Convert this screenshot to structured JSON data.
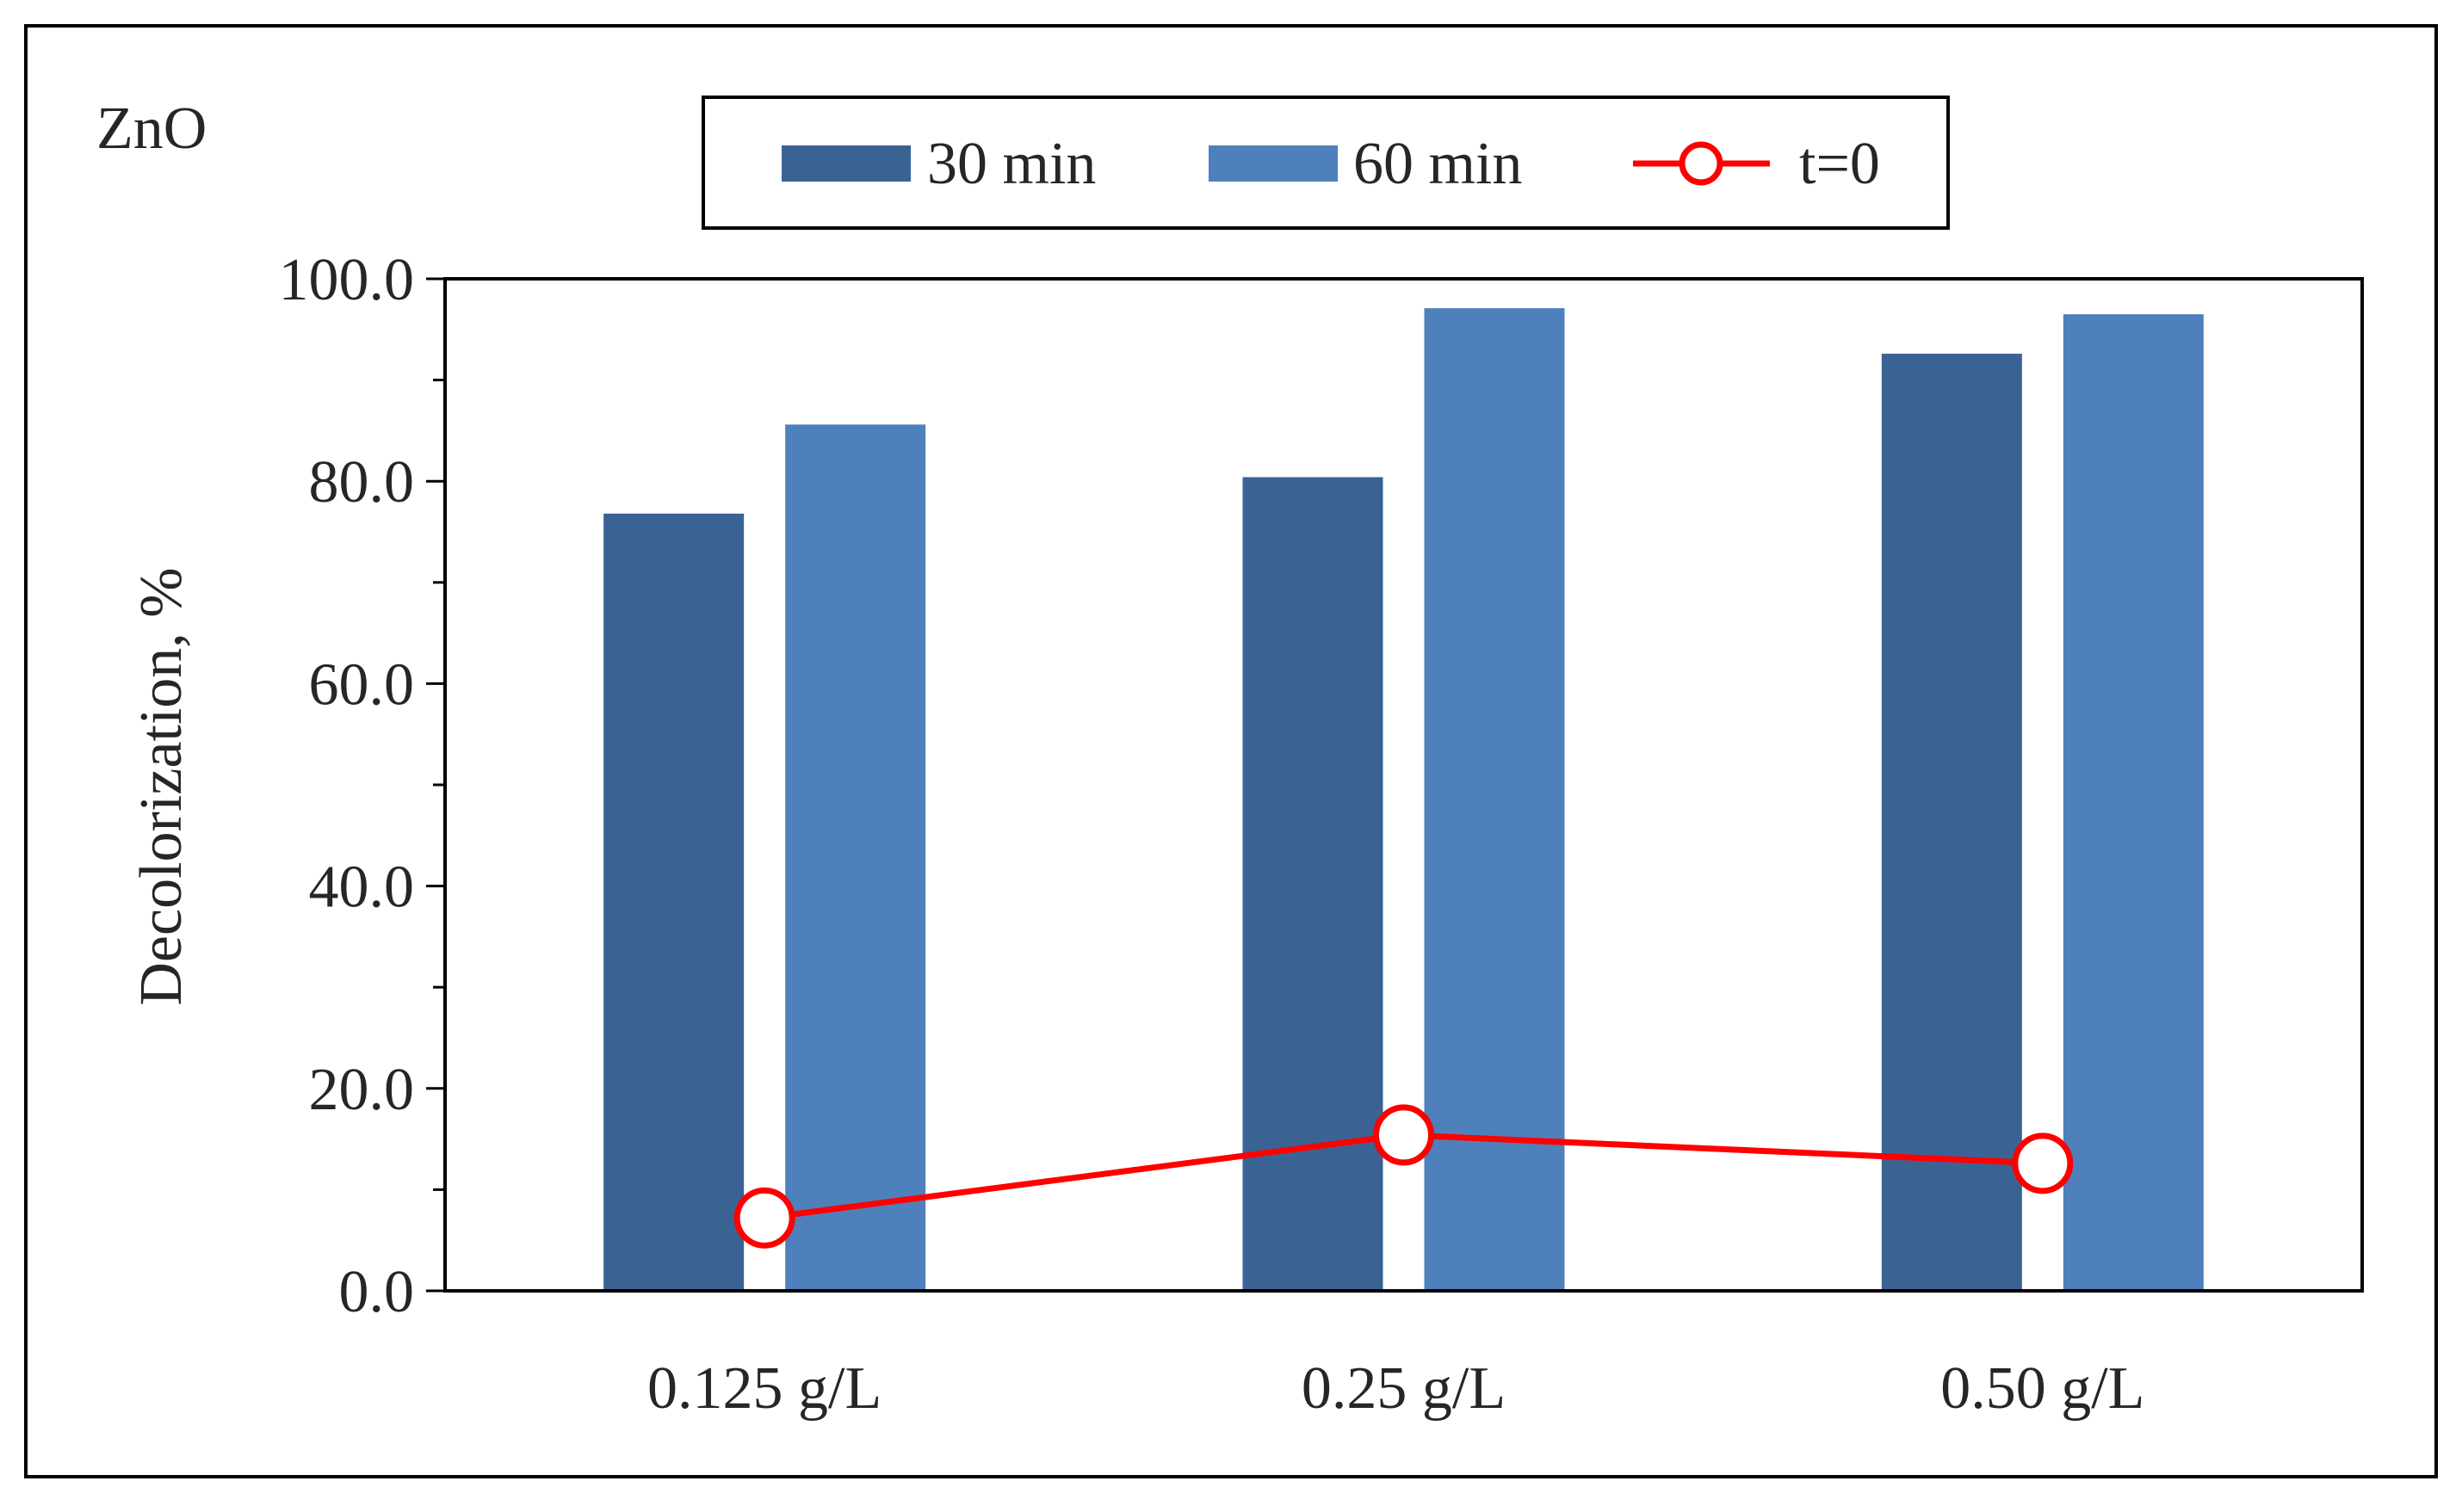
{
  "chart_data": {
    "type": "bar",
    "title": "ZnO",
    "xlabel": "",
    "ylabel": "Decolorization, %",
    "categories": [
      "0.125 g/L",
      "0.25 g/L",
      "0.50 g/L"
    ],
    "ylim": [
      0,
      100
    ],
    "yticks": [
      "0.0",
      "20.0",
      "40.0",
      "60.0",
      "80.0",
      "100.0"
    ],
    "series": [
      {
        "name": "30 min",
        "kind": "bar",
        "color": "#3A6394",
        "values": [
          76.8,
          80.4,
          92.6
        ]
      },
      {
        "name": "60 min",
        "kind": "bar",
        "color": "#4E80BC",
        "values": [
          85.6,
          97.1,
          96.5
        ]
      },
      {
        "name": "t=0",
        "kind": "line",
        "color": "#FF0000",
        "marker": "open-circle",
        "values": [
          7.2,
          15.4,
          12.6
        ]
      }
    ],
    "legend_position": "top-center",
    "grid": false
  }
}
